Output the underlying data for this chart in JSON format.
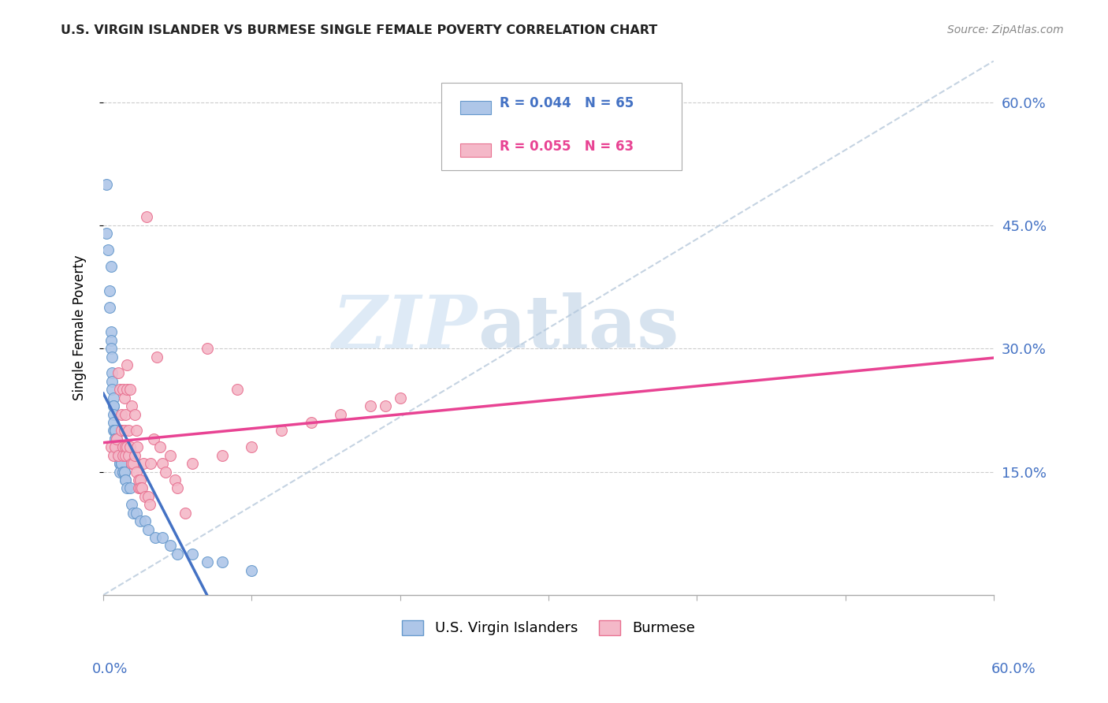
{
  "title": "U.S. VIRGIN ISLANDER VS BURMESE SINGLE FEMALE POVERTY CORRELATION CHART",
  "source": "Source: ZipAtlas.com",
  "ylabel": "Single Female Poverty",
  "ytick_labels": [
    "15.0%",
    "30.0%",
    "45.0%",
    "60.0%"
  ],
  "ytick_values": [
    0.15,
    0.3,
    0.45,
    0.6
  ],
  "xlim": [
    0.0,
    0.6
  ],
  "ylim": [
    0.0,
    0.65
  ],
  "color_blue": "#aec6e8",
  "color_pink": "#f4b8c8",
  "color_blue_edge": "#6699cc",
  "color_pink_edge": "#e87090",
  "color_blue_line": "#4472c4",
  "color_pink_line": "#e84393",
  "color_dashed": "#bbccdd",
  "color_right_axis": "#4472c4",
  "blue_scatter_x": [
    0.002,
    0.002,
    0.003,
    0.004,
    0.004,
    0.005,
    0.005,
    0.005,
    0.005,
    0.006,
    0.006,
    0.006,
    0.006,
    0.007,
    0.007,
    0.007,
    0.007,
    0.007,
    0.007,
    0.008,
    0.008,
    0.008,
    0.008,
    0.008,
    0.008,
    0.009,
    0.009,
    0.009,
    0.009,
    0.009,
    0.01,
    0.01,
    0.01,
    0.01,
    0.01,
    0.01,
    0.01,
    0.011,
    0.011,
    0.011,
    0.011,
    0.012,
    0.012,
    0.013,
    0.013,
    0.014,
    0.014,
    0.015,
    0.015,
    0.016,
    0.018,
    0.019,
    0.02,
    0.022,
    0.025,
    0.028,
    0.03,
    0.035,
    0.04,
    0.045,
    0.05,
    0.06,
    0.07,
    0.08,
    0.1
  ],
  "blue_scatter_y": [
    0.5,
    0.44,
    0.42,
    0.37,
    0.35,
    0.4,
    0.32,
    0.31,
    0.3,
    0.29,
    0.27,
    0.26,
    0.25,
    0.24,
    0.23,
    0.23,
    0.22,
    0.21,
    0.2,
    0.2,
    0.2,
    0.2,
    0.19,
    0.19,
    0.19,
    0.19,
    0.18,
    0.18,
    0.18,
    0.18,
    0.18,
    0.17,
    0.17,
    0.17,
    0.17,
    0.17,
    0.17,
    0.17,
    0.16,
    0.16,
    0.15,
    0.16,
    0.16,
    0.15,
    0.15,
    0.15,
    0.15,
    0.14,
    0.14,
    0.13,
    0.13,
    0.11,
    0.1,
    0.1,
    0.09,
    0.09,
    0.08,
    0.07,
    0.07,
    0.06,
    0.05,
    0.05,
    0.04,
    0.04,
    0.03
  ],
  "pink_scatter_x": [
    0.005,
    0.007,
    0.008,
    0.009,
    0.01,
    0.01,
    0.011,
    0.012,
    0.012,
    0.013,
    0.013,
    0.013,
    0.014,
    0.014,
    0.015,
    0.015,
    0.015,
    0.016,
    0.016,
    0.016,
    0.017,
    0.017,
    0.018,
    0.018,
    0.019,
    0.019,
    0.02,
    0.021,
    0.021,
    0.022,
    0.022,
    0.023,
    0.024,
    0.024,
    0.025,
    0.025,
    0.026,
    0.027,
    0.028,
    0.029,
    0.03,
    0.031,
    0.032,
    0.034,
    0.036,
    0.038,
    0.04,
    0.042,
    0.045,
    0.048,
    0.05,
    0.055,
    0.06,
    0.07,
    0.08,
    0.09,
    0.1,
    0.12,
    0.14,
    0.16,
    0.18,
    0.19,
    0.2
  ],
  "pink_scatter_y": [
    0.18,
    0.17,
    0.18,
    0.19,
    0.17,
    0.27,
    0.25,
    0.22,
    0.2,
    0.18,
    0.25,
    0.17,
    0.24,
    0.2,
    0.18,
    0.17,
    0.22,
    0.28,
    0.25,
    0.18,
    0.2,
    0.17,
    0.25,
    0.18,
    0.23,
    0.16,
    0.16,
    0.22,
    0.17,
    0.2,
    0.15,
    0.18,
    0.13,
    0.14,
    0.14,
    0.13,
    0.13,
    0.16,
    0.12,
    0.46,
    0.12,
    0.11,
    0.16,
    0.19,
    0.29,
    0.18,
    0.16,
    0.15,
    0.17,
    0.14,
    0.13,
    0.1,
    0.16,
    0.3,
    0.17,
    0.25,
    0.18,
    0.2,
    0.21,
    0.22,
    0.23,
    0.23,
    0.24
  ]
}
